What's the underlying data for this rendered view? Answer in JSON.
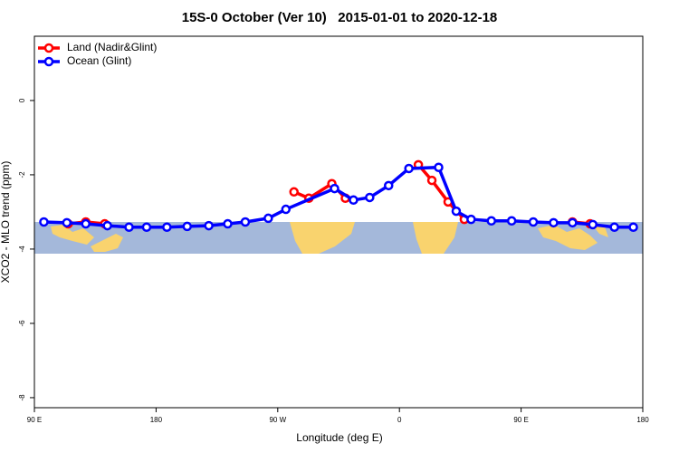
{
  "chart_data": {
    "type": "line",
    "title": "15S-0 October (Ver 10)   2015-01-01 to 2020-12-18",
    "x_label": "Longitude (deg E)",
    "y_label": "XCO2 - MLO trend (ppm)",
    "xlim": [
      90,
      540
    ],
    "ylim": [
      -8.27,
      1.73
    ],
    "xticks": [
      {
        "value": 90,
        "label": "90 E"
      },
      {
        "value": 180,
        "label": "180"
      },
      {
        "value": 270,
        "label": "90 W"
      },
      {
        "value": 360,
        "label": "0"
      },
      {
        "value": 450,
        "label": "90 E"
      },
      {
        "value": 540,
        "label": "180"
      }
    ],
    "yticks": [
      0,
      -2,
      -4,
      -6,
      -8
    ],
    "legend": "top-left",
    "series": [
      {
        "name": "Land (Nadir&Glint)",
        "color": "#ff0000",
        "x": [
          115,
          128,
          142,
          null,
          282,
          293,
          310,
          320,
          null,
          374,
          384,
          396,
          408,
          null,
          488,
          501
        ],
        "values": [
          -3.32,
          -3.27,
          -3.32,
          null,
          -2.46,
          -2.63,
          -2.24,
          -2.63,
          null,
          -1.73,
          -2.15,
          -2.73,
          -3.2,
          null,
          -3.27,
          -3.32
        ]
      },
      {
        "name": "Ocean (Glint)",
        "color": "#0000ff",
        "x": [
          97,
          114,
          128,
          144,
          160,
          173,
          188,
          203,
          219,
          233,
          246,
          263,
          276,
          312,
          326,
          338,
          352,
          367,
          389,
          402,
          413,
          428,
          443,
          459,
          474,
          488,
          503,
          519,
          533
        ],
        "values": [
          -3.27,
          -3.29,
          -3.32,
          -3.37,
          -3.41,
          -3.41,
          -3.41,
          -3.39,
          -3.37,
          -3.32,
          -3.27,
          -3.17,
          -2.93,
          -2.37,
          -2.68,
          -2.61,
          -2.29,
          -1.83,
          -1.8,
          -2.98,
          -3.2,
          -3.24,
          -3.24,
          -3.27,
          -3.29,
          -3.29,
          -3.34,
          -3.41,
          -3.41
        ]
      }
    ]
  }
}
